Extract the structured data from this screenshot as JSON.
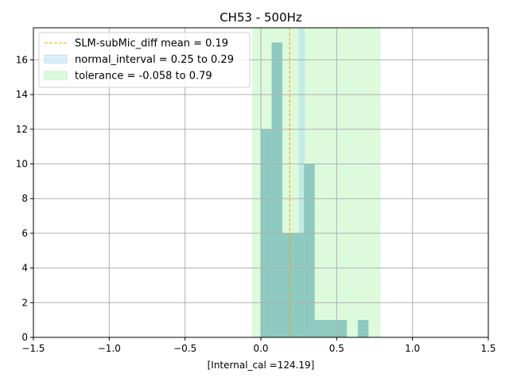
{
  "chart_data": {
    "type": "bar",
    "title": "CH53 - 500Hz",
    "xlabel": "[Internal_cal =124.19]",
    "ylabel": "",
    "xlim": [
      -1.5,
      1.5
    ],
    "ylim": [
      0,
      17.85
    ],
    "xticks": [
      -1.5,
      -1.0,
      -0.5,
      0.0,
      0.5,
      1.0,
      1.5
    ],
    "xtick_labels": [
      "−1.5",
      "−1.0",
      "−0.5",
      "0.0",
      "0.5",
      "1.0",
      "1.5"
    ],
    "yticks": [
      0,
      2,
      4,
      6,
      8,
      10,
      12,
      14,
      16
    ],
    "ytick_labels": [
      "0",
      "2",
      "4",
      "6",
      "8",
      "10",
      "12",
      "14",
      "16"
    ],
    "grid": true,
    "legend_position": "top-left",
    "histogram": {
      "bins": [
        {
          "x0": 0.0,
          "x1": 0.071,
          "count": 12
        },
        {
          "x0": 0.071,
          "x1": 0.142,
          "count": 17
        },
        {
          "x0": 0.142,
          "x1": 0.213,
          "count": 6
        },
        {
          "x0": 0.213,
          "x1": 0.284,
          "count": 6
        },
        {
          "x0": 0.284,
          "x1": 0.355,
          "count": 10
        },
        {
          "x0": 0.355,
          "x1": 0.426,
          "count": 1
        },
        {
          "x0": 0.426,
          "x1": 0.497,
          "count": 1
        },
        {
          "x0": 0.497,
          "x1": 0.568,
          "count": 1
        },
        {
          "x0": 0.568,
          "x1": 0.639,
          "count": 0
        },
        {
          "x0": 0.639,
          "x1": 0.71,
          "count": 1
        }
      ],
      "color": "#8ecac0"
    },
    "series": [
      {
        "name": "SLM-subMic_diff mean = 0.19",
        "kind": "vline",
        "x": 0.19,
        "color": "#ffa500"
      },
      {
        "name": "normal_interval = 0.25 to 0.29",
        "kind": "span",
        "x0": 0.25,
        "x1": 0.29,
        "color": "#87ceeb"
      },
      {
        "name": "tolerance = -0.058 to 0.79",
        "kind": "span",
        "x0": -0.058,
        "x1": 0.79,
        "color": "#90ee90"
      }
    ]
  }
}
